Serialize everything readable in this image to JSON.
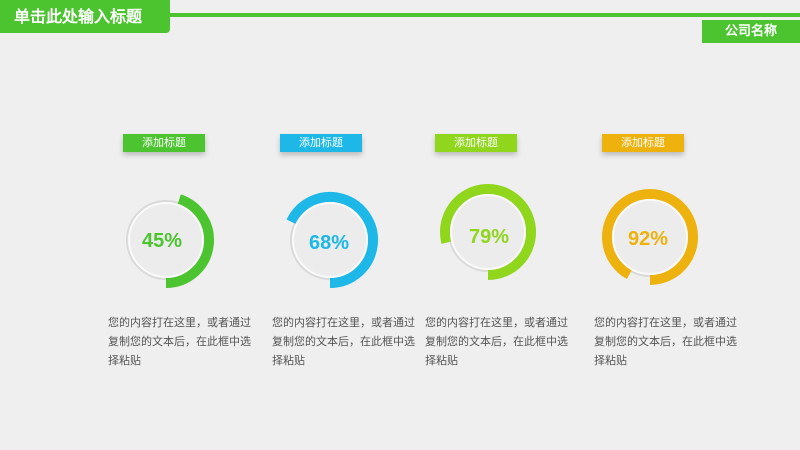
{
  "header": {
    "title": "单击此处输入标题",
    "company": "公司名称"
  },
  "colors": {
    "accent": "#4cc430"
  },
  "items": [
    {
      "label": "添加标题",
      "percent": 45,
      "percent_text": "45%",
      "color": "#4cc430",
      "desc": "您的内容打在这里，或者通过复制您的文本后，在此框中选择粘贴"
    },
    {
      "label": "添加标题",
      "percent": 68,
      "percent_text": "68%",
      "color": "#1db8e8",
      "desc": "您的内容打在这里，或者通过复制您的文本后，在此框中选择粘贴"
    },
    {
      "label": "添加标题",
      "percent": 79,
      "percent_text": "79%",
      "color": "#8fd61d",
      "desc": "您的内容打在这里，或者通过复制您的文本后，在此框中选择粘贴"
    },
    {
      "label": "添加标题",
      "percent": 92,
      "percent_text": "92%",
      "color": "#eeb20f",
      "desc": "您的内容打在这里，或者通过复制您的文本后，在此框中选择粘贴"
    }
  ]
}
